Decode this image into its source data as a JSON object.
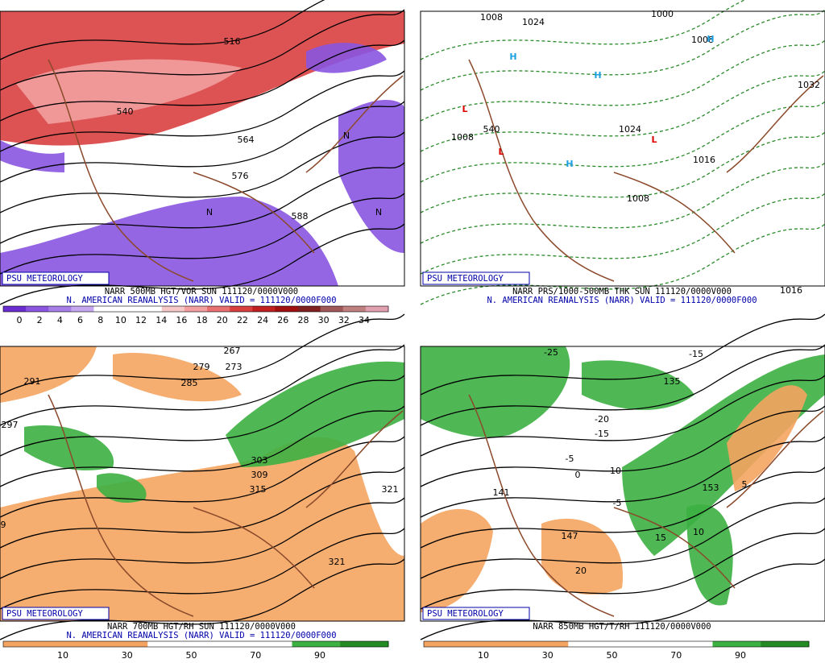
{
  "panels": [
    {
      "caption": [
        "NARR 500MB HGT/VOR SUN 111120/0000V000",
        "N. AMERICAN REANALYSIS (NARR) VALID = 111120/0000F000"
      ],
      "badge": "PSU METEOROLOGY",
      "colorbar": [
        0,
        2,
        4,
        6,
        8,
        10,
        12,
        14,
        16,
        18,
        20,
        22,
        24,
        26,
        28,
        30,
        32,
        34
      ],
      "contour_labels": [
        "516",
        "540",
        "564",
        "576",
        "588",
        "N",
        "N",
        "N"
      ]
    },
    {
      "caption": [
        "NARR PRS/1000-500MB THK SUN 111120/0000V000",
        "N. AMERICAN REANALYSIS (NARR) VALID = 111120/0000F000"
      ],
      "badge": "PSU METEOROLOGY",
      "contour_labels": [
        "1008",
        "1024",
        "1000",
        "1008",
        "1032",
        "1008",
        "1024",
        "1016",
        "1008",
        "1016",
        "540",
        "L",
        "L",
        "L",
        "H",
        "H",
        "H",
        "H"
      ]
    },
    {
      "caption": [
        "NARR 700MB HGT/RH SUN 111120/0000V000",
        "N. AMERICAN REANALYSIS (NARR) VALID = 111120/0000F000"
      ],
      "badge": "PSU METEOROLOGY",
      "colorbar": [
        10,
        30,
        50,
        70,
        90
      ],
      "contour_labels": [
        "267",
        "273",
        "279",
        "285",
        "291",
        "297",
        "303",
        "309",
        "315",
        "321",
        "321",
        "9"
      ]
    },
    {
      "caption": [
        "NARR 850MB HGT/T/RH 111120/0000V000"
      ],
      "badge": "PSU METEOROLOGY",
      "colorbar": [
        10,
        30,
        50,
        70,
        90
      ],
      "contour_labels": [
        "-25",
        "-15",
        "-20",
        "-15",
        "-10",
        "-5",
        "-5",
        "0",
        "5",
        "10",
        "15",
        "20",
        "135",
        "141",
        "147",
        "153"
      ]
    }
  ]
}
